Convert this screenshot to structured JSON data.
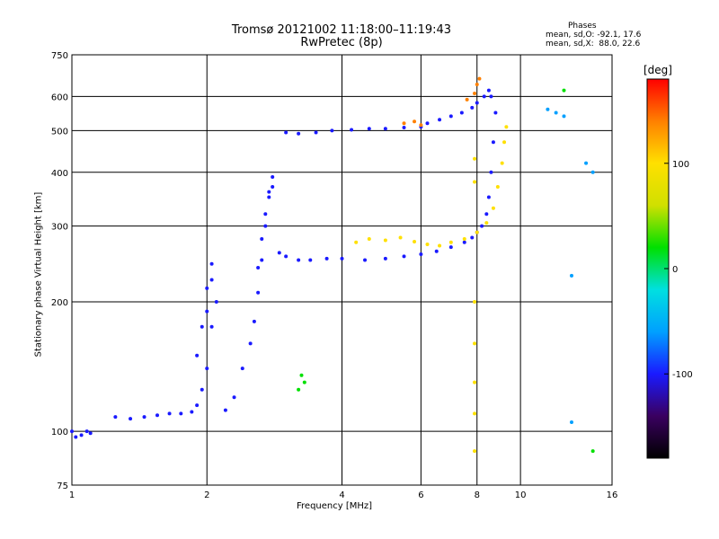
{
  "header": {
    "title_line1": "Tromsø 20121002 11:18:00–11:19:43",
    "title_line2": "RwPretec (8p)",
    "stats_heading": "Phases",
    "stats_line1": "mean, sd,O: -92.1, 17.6",
    "stats_line2": "mean, sd,X:  88.0, 22.6"
  },
  "chart_data": {
    "type": "scatter",
    "title": "Tromsø 20121002 11:18:00–11:19:43",
    "subtitle": "RwPretec (8p)",
    "xlabel": "Frequency [MHz]",
    "ylabel": "Stationary phase Virtual Height [km]",
    "xscale": "log",
    "yscale": "log",
    "xlim": [
      1,
      16
    ],
    "ylim": [
      75,
      750
    ],
    "x_ticks": [
      1,
      2,
      4,
      6,
      8,
      10,
      16
    ],
    "x_tick_labels": [
      "1",
      "2",
      "4",
      "6",
      "8",
      "10",
      "16"
    ],
    "y_ticks": [
      75,
      100,
      200,
      300,
      400,
      500,
      600,
      750
    ],
    "y_tick_labels": [
      "75",
      "100",
      "200",
      "300",
      "400",
      "500",
      "600",
      "750"
    ],
    "grid": true,
    "colorbar": {
      "label": "[deg]",
      "range": [
        -180,
        180
      ],
      "ticks": [
        -100,
        0,
        100
      ],
      "tick_labels": [
        "-100",
        "0",
        "100"
      ],
      "colors": [
        "#000000",
        "#3a0060",
        "#1a1aff",
        "#00a0ff",
        "#00e0e0",
        "#00e000",
        "#d0e000",
        "#ffe000",
        "#ff8000",
        "#ff0000"
      ]
    },
    "series": [
      {
        "phase_deg": -95,
        "x": [
          1.0,
          1.02,
          1.05,
          1.08,
          1.1,
          1.25,
          1.35,
          1.45,
          1.55,
          1.65,
          1.75,
          1.85,
          1.9,
          1.95,
          2.0,
          2.05,
          2.1,
          2.2,
          2.3,
          2.4,
          2.5,
          2.55,
          2.6,
          2.65,
          2.7,
          2.75,
          2.8,
          2.9,
          3.0,
          3.2,
          3.4,
          3.7,
          4.0,
          4.5,
          5.0,
          5.5,
          6.0,
          6.5,
          7.0,
          7.5,
          7.8,
          8.0,
          8.2,
          8.4,
          8.5,
          8.6,
          8.7,
          8.8
        ],
        "y": [
          100,
          97,
          98,
          100,
          99,
          108,
          107,
          108,
          109,
          110,
          110,
          111,
          115,
          125,
          140,
          175,
          200,
          112,
          120,
          140,
          160,
          180,
          210,
          250,
          300,
          350,
          370,
          260,
          255,
          250,
          250,
          252,
          252,
          250,
          252,
          255,
          258,
          262,
          268,
          275,
          282,
          290,
          300,
          320,
          350,
          400,
          470,
          550
        ]
      },
      {
        "phase_deg": -100,
        "x": [
          1.9,
          1.95,
          2.0,
          2.0,
          2.05,
          2.05,
          2.6,
          2.65,
          2.7,
          2.75,
          2.8
        ],
        "y": [
          150,
          175,
          190,
          215,
          225,
          245,
          240,
          280,
          320,
          360,
          390
        ]
      },
      {
        "phase_deg": -90,
        "x": [
          3.0,
          3.2,
          3.5,
          3.8,
          4.2,
          4.6,
          5.0,
          5.5,
          6.0
        ],
        "y": [
          495,
          492,
          495,
          500,
          502,
          505,
          505,
          508,
          510
        ]
      },
      {
        "phase_deg": -110,
        "x": [
          6.2,
          6.6,
          7.0,
          7.4,
          7.8,
          8.0,
          8.3,
          8.5,
          8.6
        ],
        "y": [
          520,
          530,
          540,
          550,
          565,
          580,
          600,
          620,
          600
        ]
      },
      {
        "phase_deg": 95,
        "x": [
          4.3,
          4.6,
          5.0,
          5.4,
          5.8,
          6.2,
          6.6,
          7.0,
          7.5,
          8.0,
          8.4,
          8.7,
          8.9,
          9.1,
          9.2,
          9.3
        ],
        "y": [
          275,
          280,
          278,
          282,
          276,
          272,
          270,
          275,
          280,
          290,
          305,
          330,
          370,
          420,
          470,
          510
        ]
      },
      {
        "phase_deg": 90,
        "x": [
          7.9,
          7.9,
          7.9,
          7.9,
          7.9,
          7.9,
          7.9
        ],
        "y": [
          90,
          110,
          130,
          160,
          200,
          380,
          430
        ]
      },
      {
        "phase_deg": 120,
        "x": [
          7.6,
          7.9,
          8.0,
          8.1,
          5.5,
          5.8,
          6.0
        ],
        "y": [
          590,
          610,
          640,
          660,
          520,
          525,
          515
        ]
      },
      {
        "phase_deg": -80,
        "x": [
          11.5,
          12.0,
          12.5,
          13.0,
          14.0,
          14.5,
          13.0
        ],
        "y": [
          560,
          550,
          540,
          230,
          420,
          400,
          105
        ]
      },
      {
        "phase_deg": 30,
        "x": [
          3.2,
          3.3,
          3.25,
          14.5,
          12.5
        ],
        "y": [
          125,
          130,
          135,
          90,
          620
        ]
      }
    ]
  }
}
